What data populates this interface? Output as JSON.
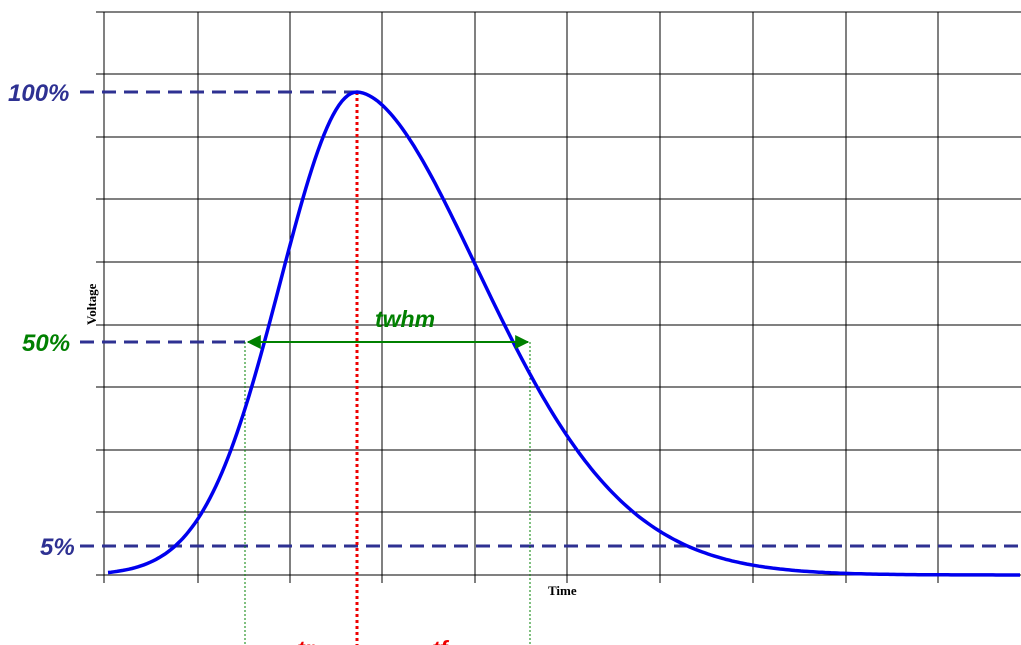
{
  "diagram": {
    "x_axis_label": "Time",
    "y_axis_label": "Voltage",
    "levels": {
      "peak": "100%",
      "half": "50%",
      "low": "5%"
    },
    "intervals": {
      "rise": "tr",
      "fall": "tf",
      "width": "twhm"
    },
    "colors": {
      "pulse": "#0000ee",
      "level_line": "#2e3192",
      "half_level": "#008000",
      "peak_marker": "#ee0000",
      "interval_arrow": "#2e3192",
      "grid": "#000000"
    }
  }
}
